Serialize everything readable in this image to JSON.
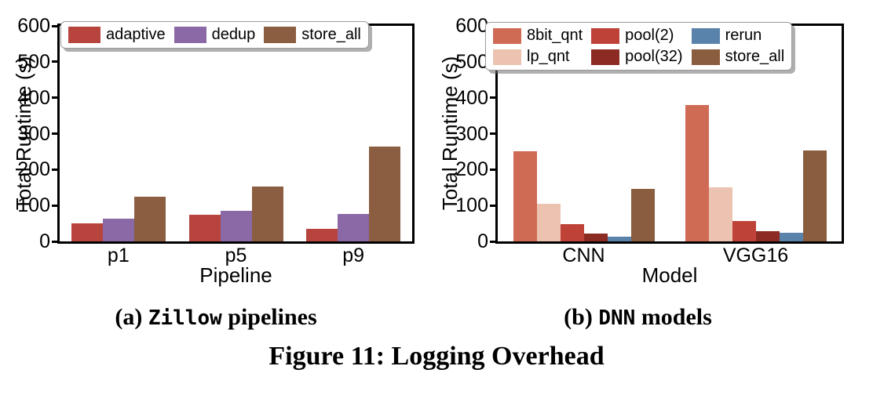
{
  "figure": {
    "caption_a_prefix": "(a)",
    "caption_a_mono": "Zillow",
    "caption_a_rest": "pipelines",
    "caption_b_prefix": "(b)",
    "caption_b_mono": "DNN",
    "caption_b_rest": "models",
    "figure_caption": "Figure 11: Logging Overhead"
  },
  "chart_data": [
    {
      "id": "zillow-pipelines",
      "type": "bar",
      "title": "",
      "xlabel": "Pipeline",
      "ylabel": "Total Runtime (s)",
      "ylim": [
        0,
        600
      ],
      "yticks": [
        0,
        100,
        200,
        300,
        400,
        500,
        600
      ],
      "grid": false,
      "legend_position": "upper-left-inside",
      "legend_columns": 3,
      "categories": [
        "p1",
        "p5",
        "p9"
      ],
      "series": [
        {
          "name": "adaptive",
          "color": "#b8443e",
          "values": [
            50,
            74,
            36
          ]
        },
        {
          "name": "dedup",
          "color": "#8a69a6",
          "values": [
            64,
            86,
            77
          ]
        },
        {
          "name": "store_all",
          "color": "#8c5e41",
          "values": [
            124,
            153,
            265
          ]
        }
      ]
    },
    {
      "id": "dnn-models",
      "type": "bar",
      "title": "",
      "xlabel": "Model",
      "ylabel": "Total Runtime (s)",
      "ylim": [
        0,
        600
      ],
      "yticks": [
        0,
        100,
        200,
        300,
        400,
        500,
        600
      ],
      "grid": false,
      "legend_position": "upper-left-inside",
      "legend_columns": 3,
      "categories": [
        "CNN",
        "VGG16"
      ],
      "series": [
        {
          "name": "8bit_qnt",
          "color": "#cf6b55",
          "values": [
            252,
            380
          ]
        },
        {
          "name": "lp_qnt",
          "color": "#ebc3b0",
          "values": [
            105,
            151
          ]
        },
        {
          "name": "pool(2)",
          "color": "#bf4238",
          "values": [
            48,
            56
          ]
        },
        {
          "name": "pool(32)",
          "color": "#8c2b24",
          "values": [
            21,
            28
          ]
        },
        {
          "name": "rerun",
          "color": "#5a83ab",
          "values": [
            13,
            25
          ]
        },
        {
          "name": "store_all",
          "color": "#8b5d3f",
          "values": [
            147,
            254
          ]
        }
      ]
    }
  ]
}
